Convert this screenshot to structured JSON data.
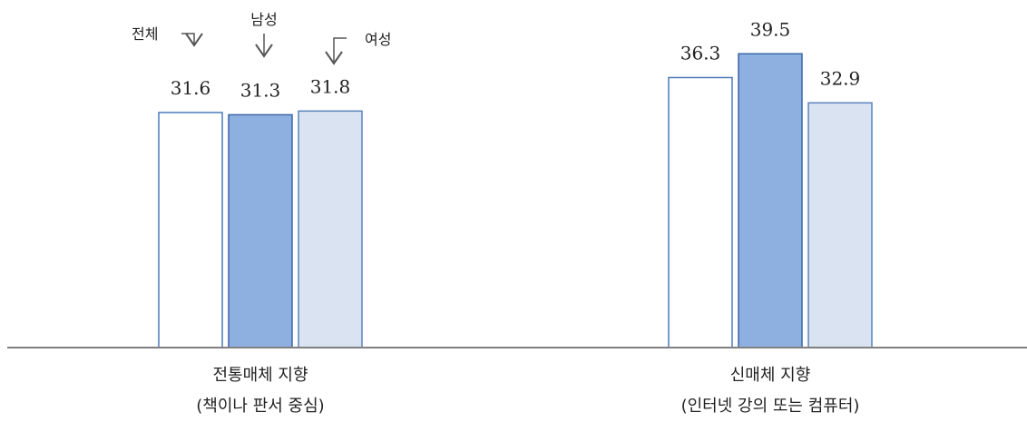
{
  "chart_data": {
    "type": "bar",
    "categories": [
      [
        "전통매체 지향",
        "(책이나 판서 중심)"
      ],
      [
        "신매체 지향",
        "(인터넷 강의 또는 컴퓨터)"
      ]
    ],
    "series": [
      {
        "name": "전체",
        "values": [
          31.6,
          36.3
        ],
        "color": "#ffffff",
        "stroke": "#4a7ab8"
      },
      {
        "name": "남성",
        "values": [
          31.3,
          39.5
        ],
        "color": "#8eb0e0",
        "stroke": "#3a66a8"
      },
      {
        "name": "여성",
        "values": [
          31.8,
          32.9
        ],
        "color": "#dae3f1",
        "stroke": "#5a82bc"
      }
    ],
    "ylim": [
      0,
      45
    ],
    "grid": false,
    "legend": "arrow callouts above first group",
    "axis_color": "#808080",
    "arrow_color": "#555555"
  }
}
